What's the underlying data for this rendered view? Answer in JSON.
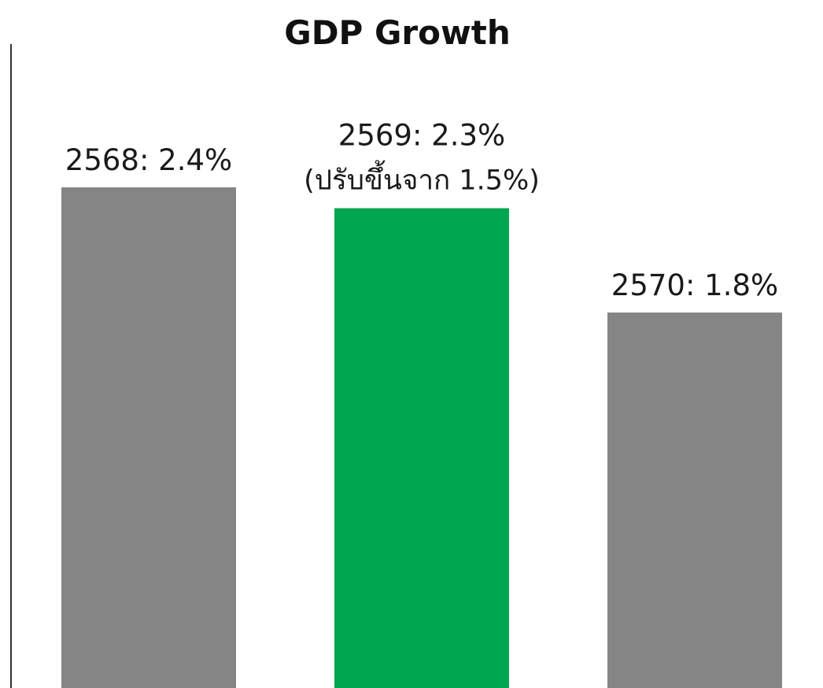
{
  "chart_data": {
    "type": "bar",
    "title": "GDP Growth",
    "categories": [
      "2568",
      "2569",
      "2570"
    ],
    "values": [
      2.4,
      2.3,
      1.8
    ],
    "data_labels": [
      "2568: 2.4%",
      "2569: 2.3%",
      "2570: 1.8%"
    ],
    "annotations": [
      "",
      "(ปรับขึ้นจาก 1.5%)",
      ""
    ],
    "colors": [
      "#858585",
      "#00a650",
      "#858585"
    ],
    "axis_color": "#333333",
    "xlabel": "",
    "ylabel": "",
    "grid": false,
    "legend": "none"
  }
}
